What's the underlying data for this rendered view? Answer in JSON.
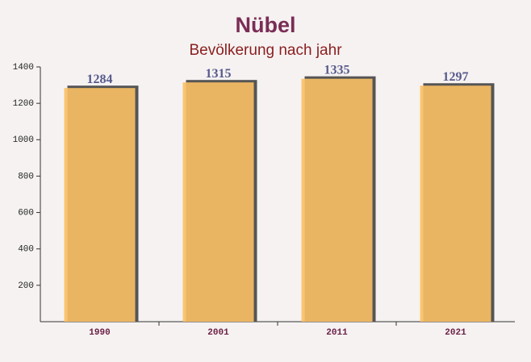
{
  "chart_data": {
    "type": "bar",
    "title": "Nübel",
    "subtitle": "Bevölkerung nach jahr",
    "categories": [
      "1990",
      "2001",
      "2011",
      "2021"
    ],
    "values": [
      1284,
      1315,
      1335,
      1297
    ],
    "color": "#fbc064",
    "ylim": [
      0,
      1400
    ],
    "yticks": [
      200,
      400,
      600,
      800,
      1000,
      1200,
      1400
    ]
  }
}
